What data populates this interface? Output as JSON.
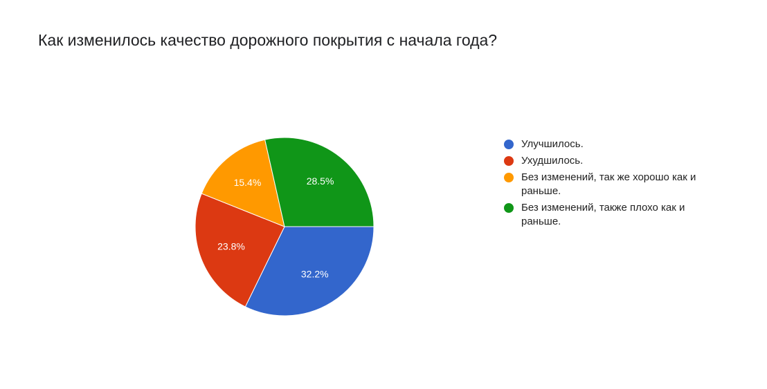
{
  "chart_data": {
    "type": "pie",
    "title": "Как изменилось качество дорожного покрытия с начала года?",
    "categories": [
      "Улучшилось.",
      "Ухудшилось.",
      "Без изменений, так же хорошо как и раньше.",
      "Без изменений, также плохо как и раньше."
    ],
    "values": [
      32.2,
      23.8,
      15.4,
      28.5
    ],
    "value_labels": [
      "32.2%",
      "23.8%",
      "15.4%",
      "28.5%"
    ],
    "colors": [
      "#3366cc",
      "#dc3912",
      "#ff9900",
      "#109618"
    ],
    "legend": "right"
  }
}
